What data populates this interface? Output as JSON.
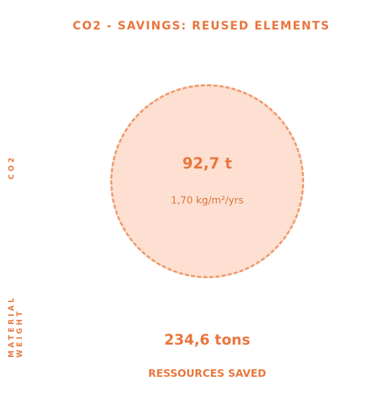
{
  "title": "CO2 - SAVINGS: REUSED ELEMENTS",
  "side_labels": {
    "co2": "CO2",
    "material_line1": "MATERIAL",
    "material_line2": "WEIGHT"
  },
  "co2_circle": {
    "value": "92,7 t",
    "per_area": "1,70 kg/m²/yrs"
  },
  "material": {
    "value": "234,6 tons",
    "caption": "RESSOURCES SAVED"
  },
  "colors": {
    "accent": "#e9773f",
    "circle_fill": "#fde0d1",
    "circle_border": "#ef9a6e"
  }
}
